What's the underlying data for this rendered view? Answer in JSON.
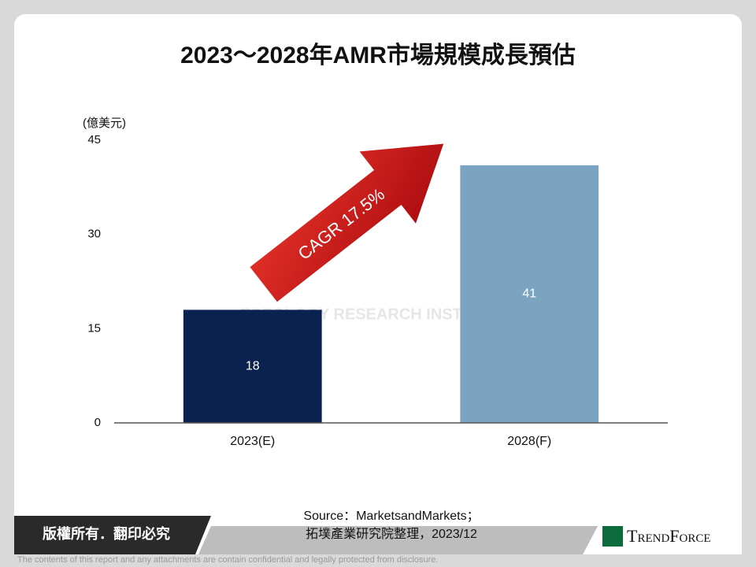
{
  "chart_data": {
    "type": "bar",
    "title": "2023～2028年AMR市場規模成長預估",
    "y_label": "(億美元)",
    "categories": [
      "2023(E)",
      "2028(F)"
    ],
    "values": [
      18,
      41
    ],
    "colors": [
      "#0b2250",
      "#7ba4c1"
    ],
    "ylim": [
      0,
      45
    ],
    "yticks": [
      0,
      15,
      30,
      45
    ],
    "grid": false,
    "annotation": "CAGR  17.5%"
  },
  "watermark": "TOPOLOGY RESEARCH INSTITUTE",
  "source": [
    "Source：MarketsandMarkets；",
    "拓墣產業研究院整理，2023/12"
  ],
  "footer": {
    "copyright": "版權所有．翻印必究",
    "logo": "TrendForce",
    "disclaimer": "The contents of this report and any attachments are contain confidential and legally protected from disclosure."
  }
}
